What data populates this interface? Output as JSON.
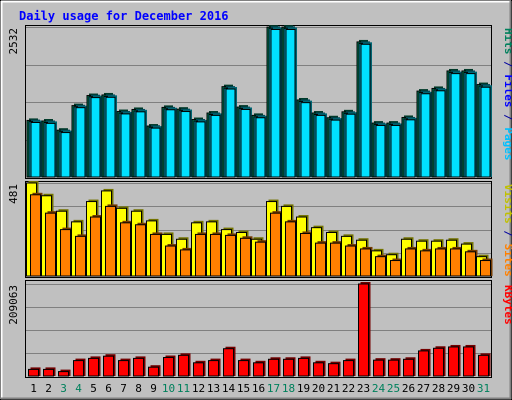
{
  "chart_data": {
    "type": "bar",
    "title": "Daily usage for December 2016",
    "categories": [
      "1",
      "2",
      "3",
      "4",
      "5",
      "6",
      "7",
      "8",
      "9",
      "10",
      "11",
      "12",
      "13",
      "14",
      "15",
      "16",
      "17",
      "18",
      "19",
      "20",
      "21",
      "22",
      "23",
      "24",
      "25",
      "26",
      "27",
      "28",
      "29",
      "30",
      "31"
    ],
    "weekend_days": [
      3,
      4,
      10,
      11,
      17,
      18,
      24,
      25,
      31
    ],
    "panels": [
      {
        "id": "pages-files-hits",
        "max_label": "2532",
        "ylim": [
          0,
          2532
        ],
        "grid": true,
        "legend": [
          {
            "text": "Hits",
            "color": "#00805c"
          },
          {
            "text": " / ",
            "color": "#0000a0"
          },
          {
            "text": "Files",
            "color": "#0000ff"
          },
          {
            "text": " / ",
            "color": "#0000a0"
          },
          {
            "text": "Pages",
            "color": "#00c0ff"
          }
        ],
        "series": [
          {
            "name": "Hits",
            "color": "#00805c",
            "values": [
              955,
              945,
              790,
              1205,
              1375,
              1385,
              1105,
              1140,
              860,
              1175,
              1145,
              970,
              1080,
              1525,
              1180,
              1040,
              2530,
              2530,
              1300,
              1080,
              1000,
              1100,
              2280,
              910,
              910,
              1005,
              1450,
              1495,
              1790,
              1790,
              1560
            ]
          },
          {
            "name": "Files",
            "color": "#00a0c0",
            "values": [
              935,
              920,
              765,
              1185,
              1355,
              1360,
              1080,
              1115,
              840,
              1150,
              1120,
              945,
              1055,
              1500,
              1155,
              1015,
              2510,
              2510,
              1275,
              1055,
              975,
              1075,
              2255,
              885,
              885,
              980,
              1425,
              1470,
              1765,
              1765,
              1535
            ]
          },
          {
            "name": "Pages",
            "color": "#00e0ff",
            "values": [
              920,
              905,
              750,
              1170,
              1340,
              1345,
              1065,
              1100,
              825,
              1135,
              1105,
              930,
              1040,
              1485,
              1140,
              1000,
              2490,
              2490,
              1255,
              1040,
              960,
              1060,
              2240,
              870,
              870,
              965,
              1405,
              1455,
              1745,
              1745,
              1515
            ]
          }
        ]
      },
      {
        "id": "visits-sites",
        "max_label": "481",
        "ylim": [
          0,
          481
        ],
        "grid": true,
        "legend": [
          {
            "text": "Visits",
            "color": "#c0c000"
          },
          {
            "text": " / ",
            "color": "#0000a0"
          },
          {
            "text": "Sites",
            "color": "#ff8000"
          }
        ],
        "series": [
          {
            "name": "Visits",
            "color": "#ffff00",
            "values": [
              481,
              415,
              335,
              280,
              385,
              440,
              350,
              335,
              285,
              215,
              190,
              275,
              280,
              240,
              225,
              190,
              385,
              360,
              305,
              250,
              225,
              205,
              185,
              130,
              110,
              190,
              180,
              180,
              185,
              165,
              100
            ]
          },
          {
            "name": "Sites",
            "color": "#ff8000",
            "values": [
              420,
              325,
              240,
              205,
              305,
              360,
              275,
              265,
              215,
              155,
              135,
              215,
              215,
              210,
              195,
              175,
              325,
              280,
              220,
              170,
              170,
              155,
              140,
              100,
              80,
              140,
              130,
              140,
              140,
              125,
              80
            ]
          }
        ]
      },
      {
        "id": "kbytes",
        "max_label": "209063",
        "ylim": [
          0,
          209063
        ],
        "grid": true,
        "legend": [
          {
            "text": "KBytes",
            "color": "#ff0000"
          }
        ],
        "series": [
          {
            "name": "KBytes",
            "color": "#ff0000",
            "values": [
              15000,
              15000,
              10000,
              35000,
              40000,
              45000,
              35000,
              40000,
              20000,
              42000,
              47000,
              30000,
              35000,
              62000,
              35000,
              30000,
              38000,
              38000,
              40000,
              30000,
              28000,
              35000,
              209063,
              36000,
              36000,
              38000,
              57000,
              63000,
              66000,
              66000,
              47000
            ]
          }
        ]
      }
    ]
  }
}
